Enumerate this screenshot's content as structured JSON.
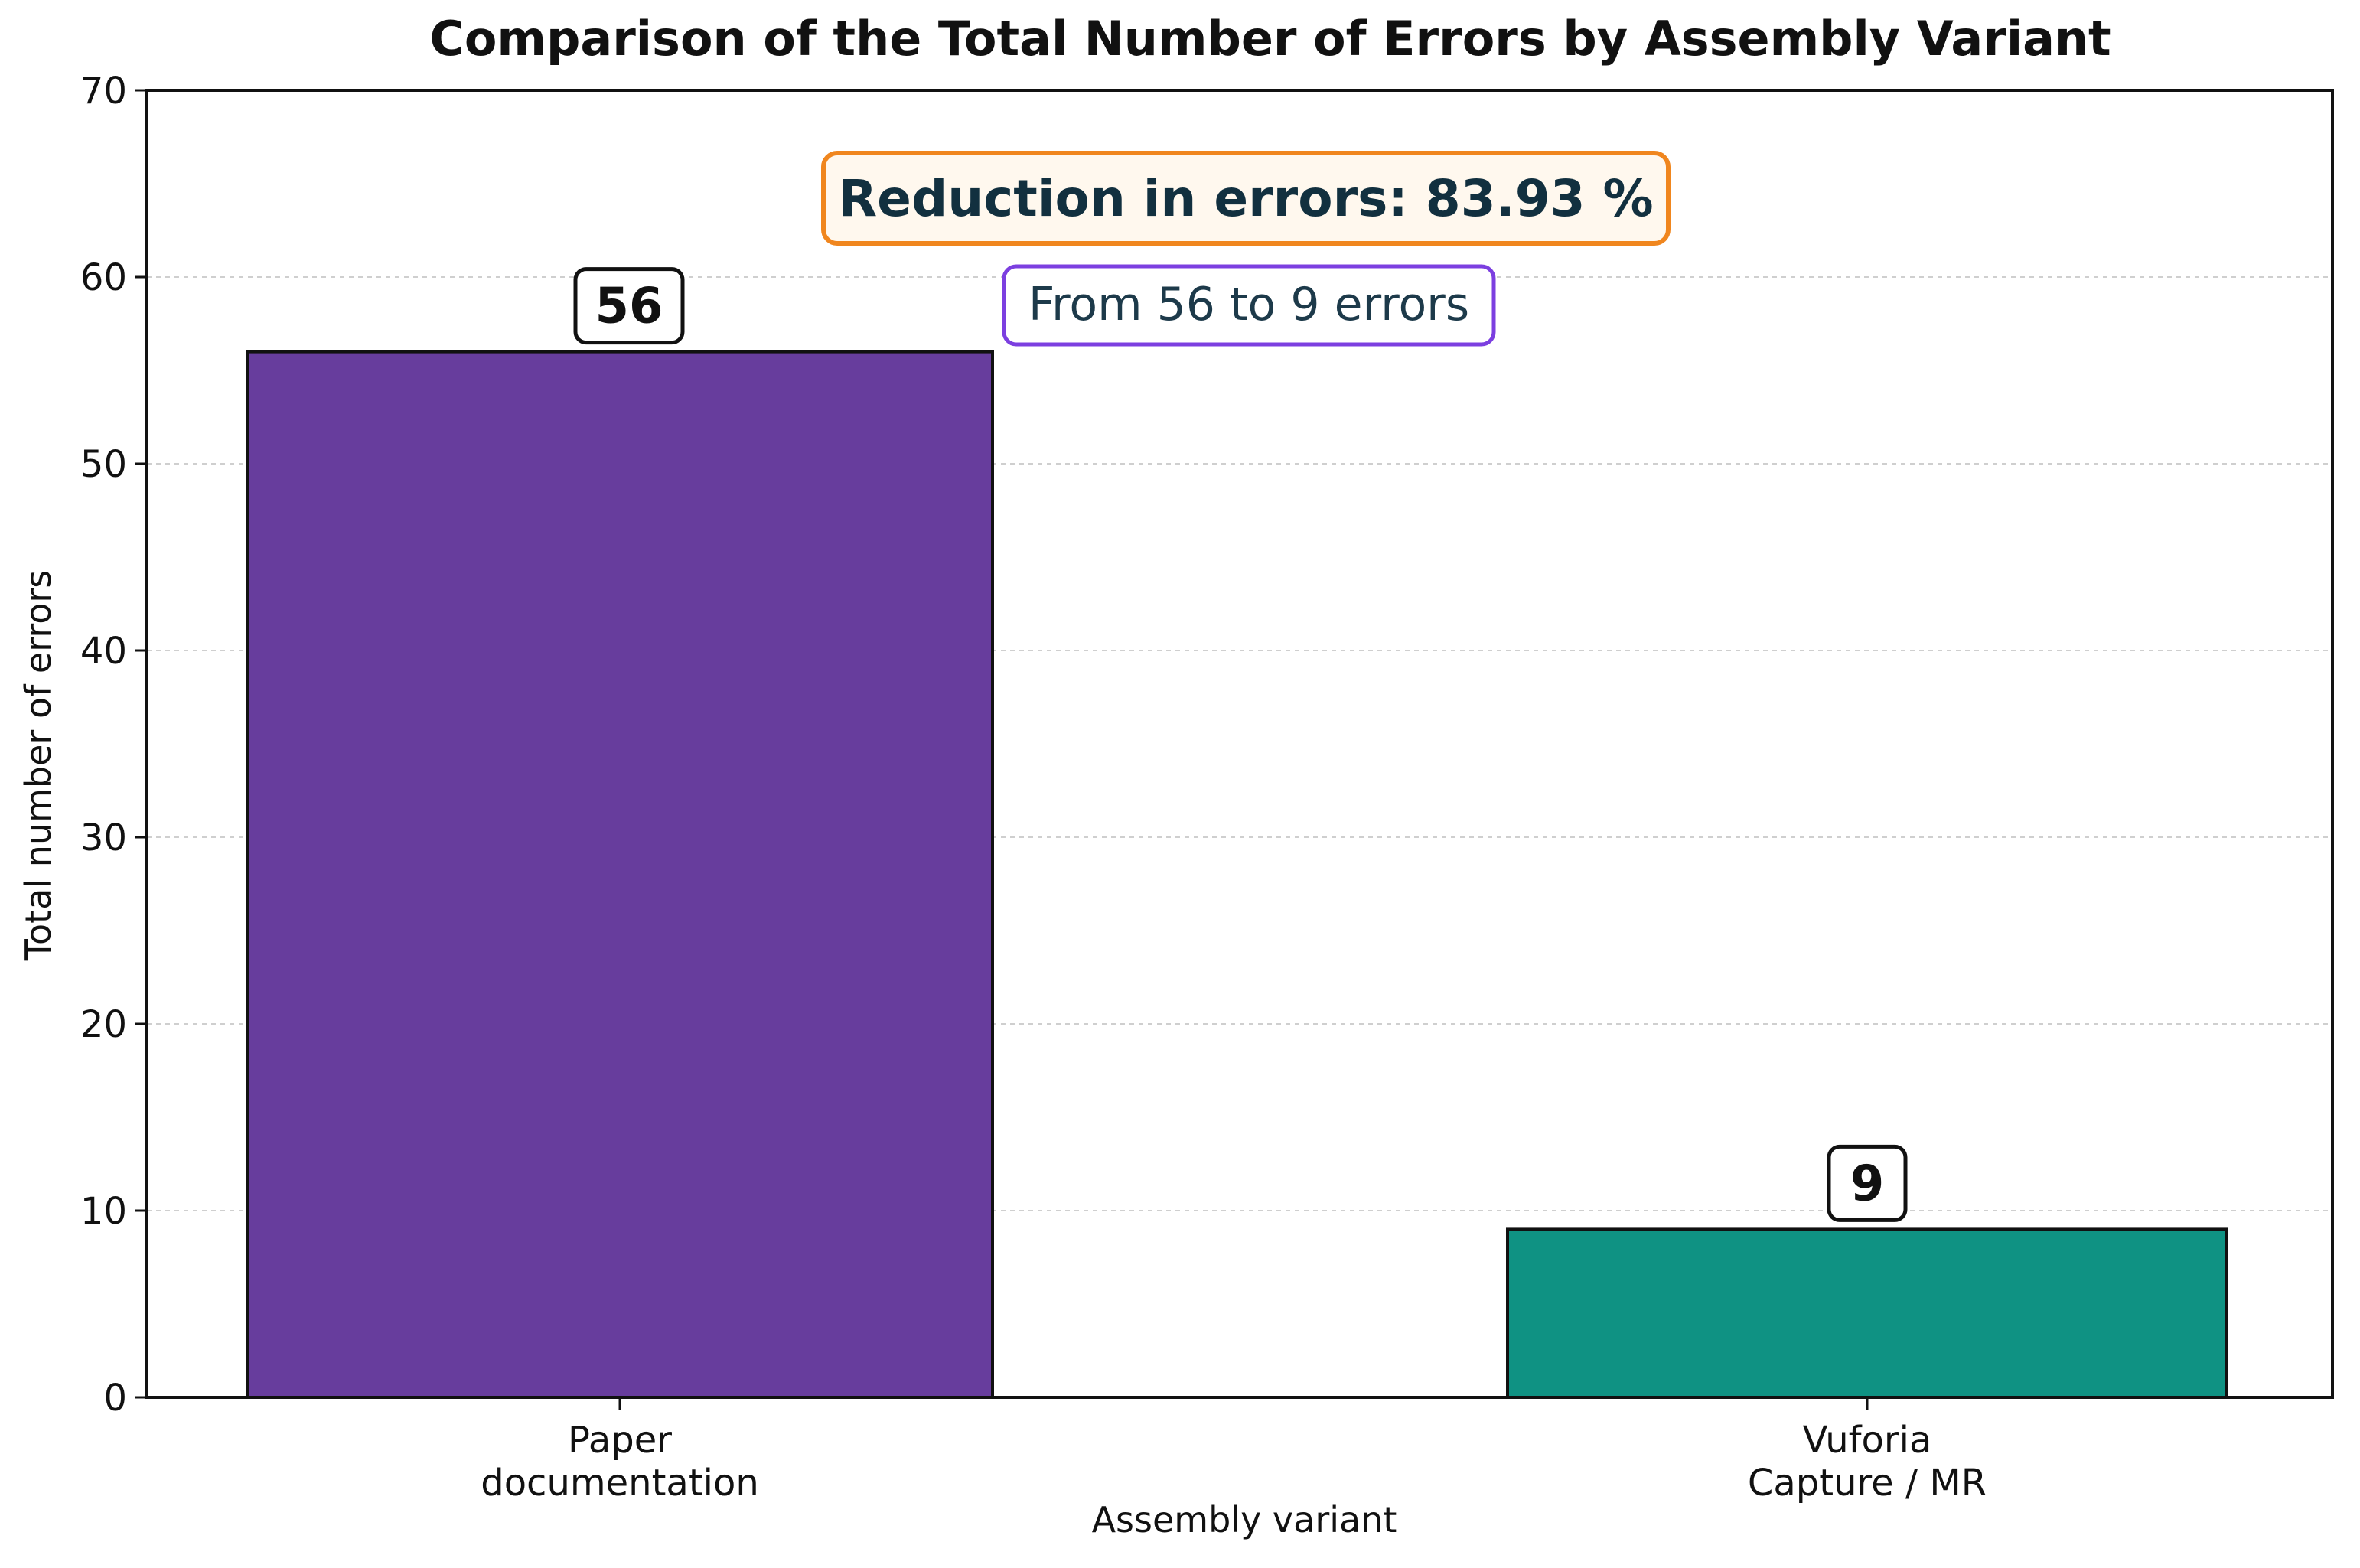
{
  "chart_data": {
    "type": "bar",
    "title": "Comparison of the Total Number of Errors by Assembly Variant",
    "xlabel": "Assembly variant",
    "ylabel": "Total number of errors",
    "categories": [
      [
        "Paper",
        "documentation"
      ],
      [
        "Vuforia",
        "Capture / MR"
      ]
    ],
    "values": [
      56,
      9
    ],
    "value_labels": [
      "56",
      "9"
    ],
    "bar_colors": [
      "#673d9d",
      "#0f9283"
    ],
    "ylim": [
      0,
      70
    ],
    "yticks": [
      0,
      10,
      20,
      30,
      40,
      50,
      60,
      70
    ],
    "grid": "horizontal dashed",
    "annotations": {
      "main": "Reduction in errors: 83.93 %",
      "sub": "From 56 to 9 errors",
      "main_border_color": "#f0861e",
      "main_fill_color": "#fff8ee",
      "sub_border_color": "#7c3fe0",
      "sub_fill_color": "#ffffff"
    }
  }
}
